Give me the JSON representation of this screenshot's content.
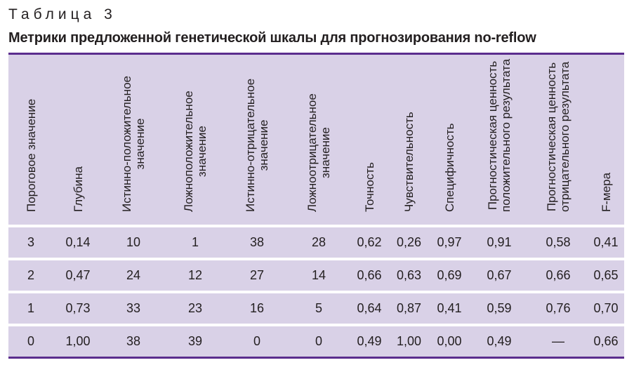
{
  "caption": "Таблица 3",
  "title": "Метрики предложенной генетической шкалы для прогнозирования no-reflow",
  "colors": {
    "accent_line": "#5b2d8e",
    "table_bg": "#d9d1e7",
    "text": "#231f20"
  },
  "table": {
    "columns": [
      {
        "lines": [
          "Пороговое значение"
        ]
      },
      {
        "lines": [
          "Глубина"
        ]
      },
      {
        "lines": [
          "Истинно-положительное",
          "значение"
        ]
      },
      {
        "lines": [
          "Ложноположительное",
          "значение"
        ]
      },
      {
        "lines": [
          "Истинно-отрицательное",
          "значение"
        ]
      },
      {
        "lines": [
          "Ложноотрицательное",
          "значение"
        ]
      },
      {
        "lines": [
          "Точность"
        ]
      },
      {
        "lines": [
          "Чувствительность"
        ]
      },
      {
        "lines": [
          "Специфичность"
        ]
      },
      {
        "lines": [
          "Прогностическая ценность",
          "положительного результата"
        ]
      },
      {
        "lines": [
          "Прогностическая ценность",
          "отрицательного результата"
        ]
      },
      {
        "lines": [
          "F-мера"
        ]
      }
    ],
    "rows": [
      [
        "3",
        "0,14",
        "10",
        "1",
        "38",
        "28",
        "0,62",
        "0,26",
        "0,97",
        "0,91",
        "0,58",
        "0,41"
      ],
      [
        "2",
        "0,47",
        "24",
        "12",
        "27",
        "14",
        "0,66",
        "0,63",
        "0,69",
        "0,67",
        "0,66",
        "0,65"
      ],
      [
        "1",
        "0,73",
        "33",
        "23",
        "16",
        "5",
        "0,64",
        "0,87",
        "0,41",
        "0,59",
        "0,76",
        "0,70"
      ],
      [
        "0",
        "1,00",
        "38",
        "39",
        "0",
        "0",
        "0,49",
        "1,00",
        "0,00",
        "0,49",
        "—",
        "0,66"
      ]
    ]
  }
}
